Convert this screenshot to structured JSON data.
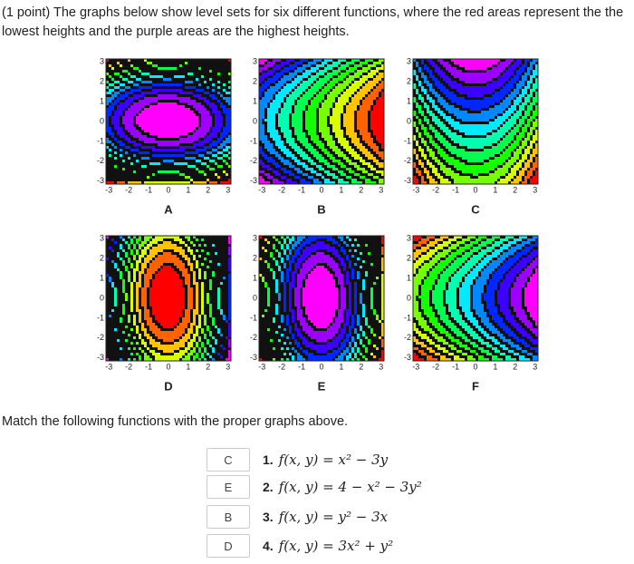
{
  "header": {
    "text": "(1 point) The graphs below show level sets for six different functions, where the red areas represent the the lowest heights and the purple areas are the highest heights."
  },
  "graphs": [
    {
      "label": "A"
    },
    {
      "label": "B"
    },
    {
      "label": "C"
    },
    {
      "label": "D"
    },
    {
      "label": "E"
    },
    {
      "label": "F"
    }
  ],
  "axis_ticks": [
    -3,
    -2,
    -1,
    0,
    1,
    2,
    3
  ],
  "prompt": "Match the following functions with the proper graphs above.",
  "questions": [
    {
      "answer": "C",
      "number": "1.",
      "formula": "f(x, y) = x² − 3y"
    },
    {
      "answer": "E",
      "number": "2.",
      "formula": "f(x, y) = 4 − x² − 3y²"
    },
    {
      "answer": "B",
      "number": "3.",
      "formula": "f(x, y) = y² − 3x"
    },
    {
      "answer": "D",
      "number": "4.",
      "formula": "f(x, y) = 3x² + y²"
    }
  ]
}
